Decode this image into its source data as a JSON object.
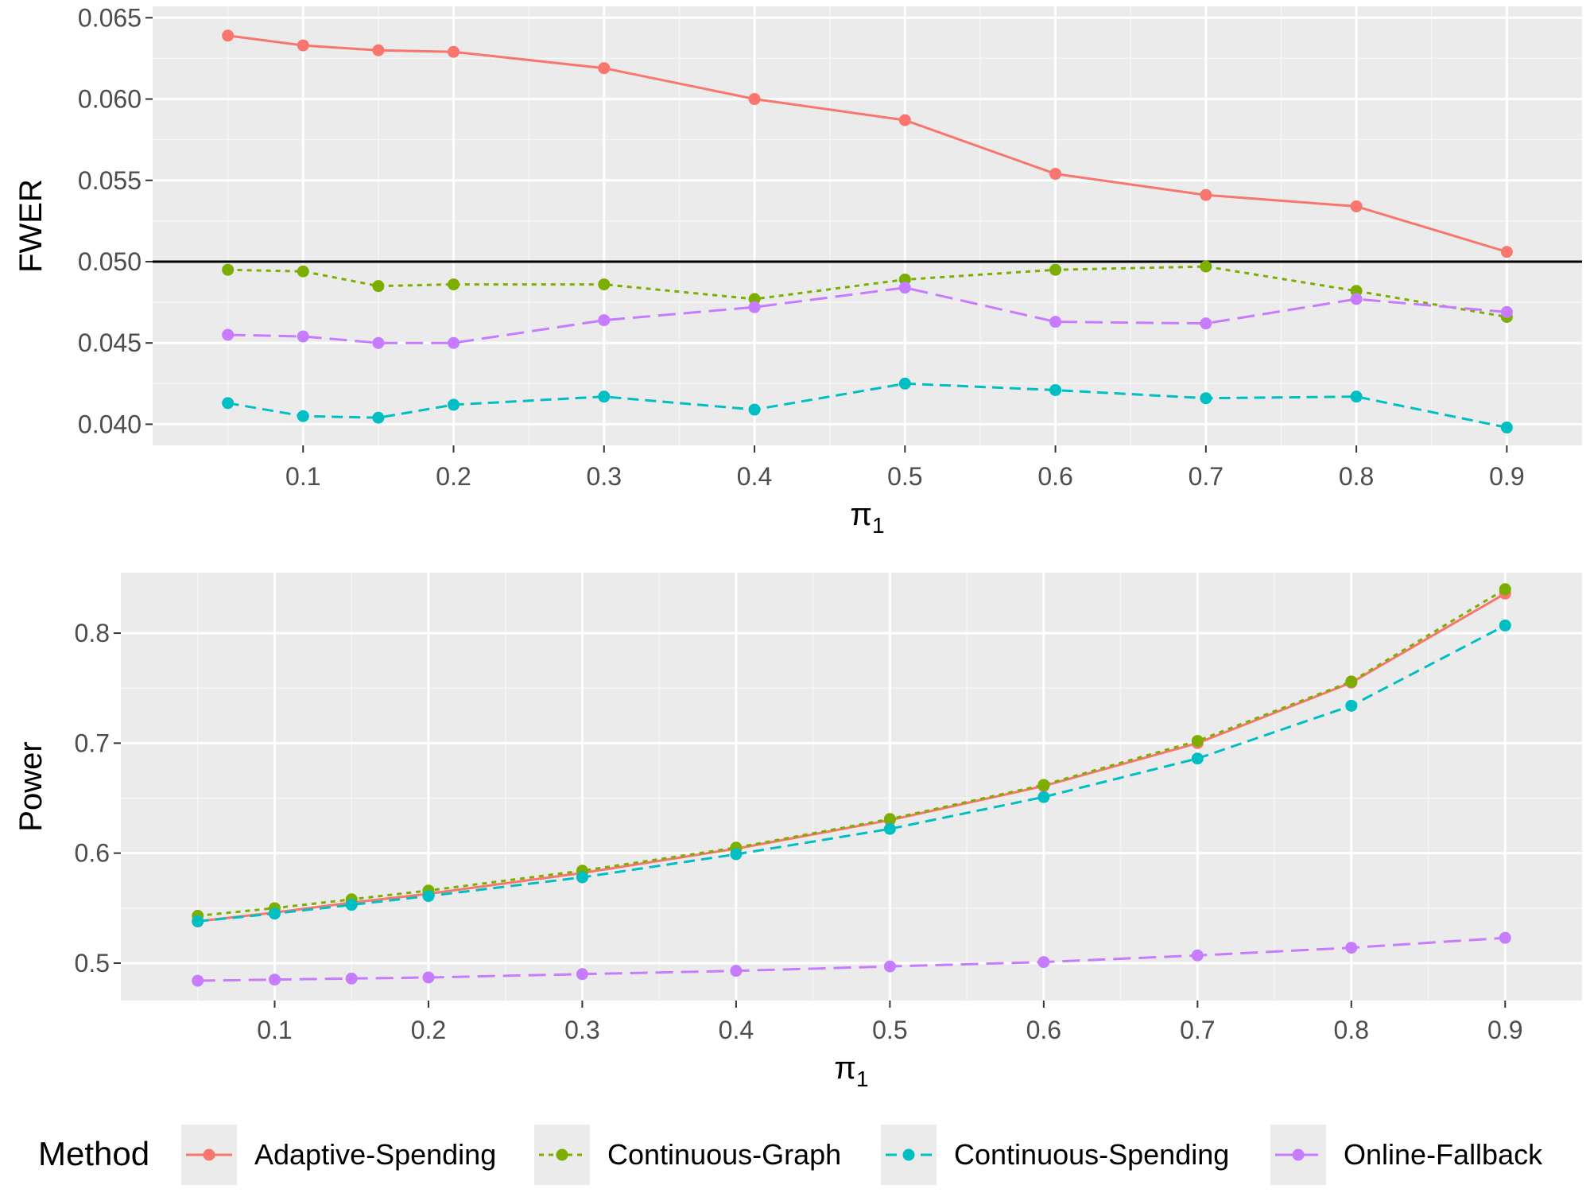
{
  "colors": {
    "panel_bg": "#EBEBEB",
    "grid_major": "#FFFFFF",
    "grid_minor": "#F5F5F5",
    "tick_text": "#4D4D4D",
    "reference_line": "#000000"
  },
  "chart_data": [
    {
      "type": "line",
      "ylabel": "FWER",
      "xlabel_symbol": "π",
      "xlabel_subscript": "1",
      "x": [
        0.05,
        0.1,
        0.15,
        0.2,
        0.3,
        0.4,
        0.5,
        0.6,
        0.7,
        0.8,
        0.9
      ],
      "xlim": [
        0.0,
        0.95
      ],
      "ylim": [
        0.0387,
        0.0657
      ],
      "x_ticks": [
        0.1,
        0.2,
        0.3,
        0.4,
        0.5,
        0.6,
        0.7,
        0.8,
        0.9
      ],
      "x_tick_labels": [
        "0.1",
        "0.2",
        "0.3",
        "0.4",
        "0.5",
        "0.6",
        "0.7",
        "0.8",
        "0.9"
      ],
      "y_ticks": [
        0.04,
        0.045,
        0.05,
        0.055,
        0.06,
        0.065
      ],
      "y_tick_labels": [
        "0.040",
        "0.045",
        "0.050",
        "0.055",
        "0.060",
        "0.065"
      ],
      "hline": 0.05,
      "series": [
        {
          "name": "Adaptive-Spending",
          "color": "#F8766D",
          "dash": "solid",
          "values": [
            0.0639,
            0.0633,
            0.063,
            0.0629,
            0.0619,
            0.06,
            0.0587,
            0.0554,
            0.0541,
            0.0534,
            0.0506
          ]
        },
        {
          "name": "Continuous-Graph",
          "color": "#7CAE00",
          "dash": "dotted",
          "values": [
            0.0495,
            0.0494,
            0.0485,
            0.0486,
            0.0486,
            0.0477,
            0.0489,
            0.0495,
            0.0497,
            0.0482,
            0.0466
          ]
        },
        {
          "name": "Continuous-Spending",
          "color": "#00BFC4",
          "dash": "dashed",
          "values": [
            0.0413,
            0.0405,
            0.0404,
            0.0412,
            0.0417,
            0.0409,
            0.0425,
            0.0421,
            0.0416,
            0.0417,
            0.0398
          ]
        },
        {
          "name": "Online-Fallback",
          "color": "#C77CFF",
          "dash": "longdash",
          "values": [
            0.0455,
            0.0454,
            0.045,
            0.045,
            0.0464,
            0.0472,
            0.0484,
            0.0463,
            0.0462,
            0.0477,
            0.0469
          ]
        }
      ]
    },
    {
      "type": "line",
      "ylabel": "Power",
      "xlabel_symbol": "π",
      "xlabel_subscript": "1",
      "x": [
        0.05,
        0.1,
        0.15,
        0.2,
        0.3,
        0.4,
        0.5,
        0.6,
        0.7,
        0.8,
        0.9
      ],
      "xlim": [
        0.0,
        0.95
      ],
      "ylim": [
        0.466,
        0.855
      ],
      "x_ticks": [
        0.1,
        0.2,
        0.3,
        0.4,
        0.5,
        0.6,
        0.7,
        0.8,
        0.9
      ],
      "x_tick_labels": [
        "0.1",
        "0.2",
        "0.3",
        "0.4",
        "0.5",
        "0.6",
        "0.7",
        "0.8",
        "0.9"
      ],
      "y_ticks": [
        0.5,
        0.6,
        0.7,
        0.8
      ],
      "y_tick_labels": [
        "0.5",
        "0.6",
        "0.7",
        "0.8"
      ],
      "series": [
        {
          "name": "Adaptive-Spending",
          "color": "#F8766D",
          "dash": "solid",
          "values": [
            0.538,
            0.546,
            0.555,
            0.563,
            0.582,
            0.604,
            0.63,
            0.661,
            0.7,
            0.755,
            0.836
          ]
        },
        {
          "name": "Continuous-Graph",
          "color": "#7CAE00",
          "dash": "dotted",
          "values": [
            0.543,
            0.55,
            0.558,
            0.566,
            0.584,
            0.605,
            0.631,
            0.662,
            0.702,
            0.756,
            0.84
          ]
        },
        {
          "name": "Continuous-Spending",
          "color": "#00BFC4",
          "dash": "dashed",
          "values": [
            0.538,
            0.545,
            0.553,
            0.561,
            0.578,
            0.599,
            0.622,
            0.651,
            0.686,
            0.734,
            0.807
          ]
        },
        {
          "name": "Online-Fallback",
          "color": "#C77CFF",
          "dash": "longdash",
          "values": [
            0.484,
            0.485,
            0.486,
            0.487,
            0.49,
            0.493,
            0.497,
            0.501,
            0.507,
            0.514,
            0.523
          ]
        }
      ]
    }
  ],
  "legend": {
    "title": "Method",
    "items": [
      {
        "label": "Adaptive-Spending",
        "color": "#F8766D",
        "dash": "solid"
      },
      {
        "label": "Continuous-Graph",
        "color": "#7CAE00",
        "dash": "dotted"
      },
      {
        "label": "Continuous-Spending",
        "color": "#00BFC4",
        "dash": "dashed"
      },
      {
        "label": "Online-Fallback",
        "color": "#C77CFF",
        "dash": "longdash"
      }
    ]
  }
}
